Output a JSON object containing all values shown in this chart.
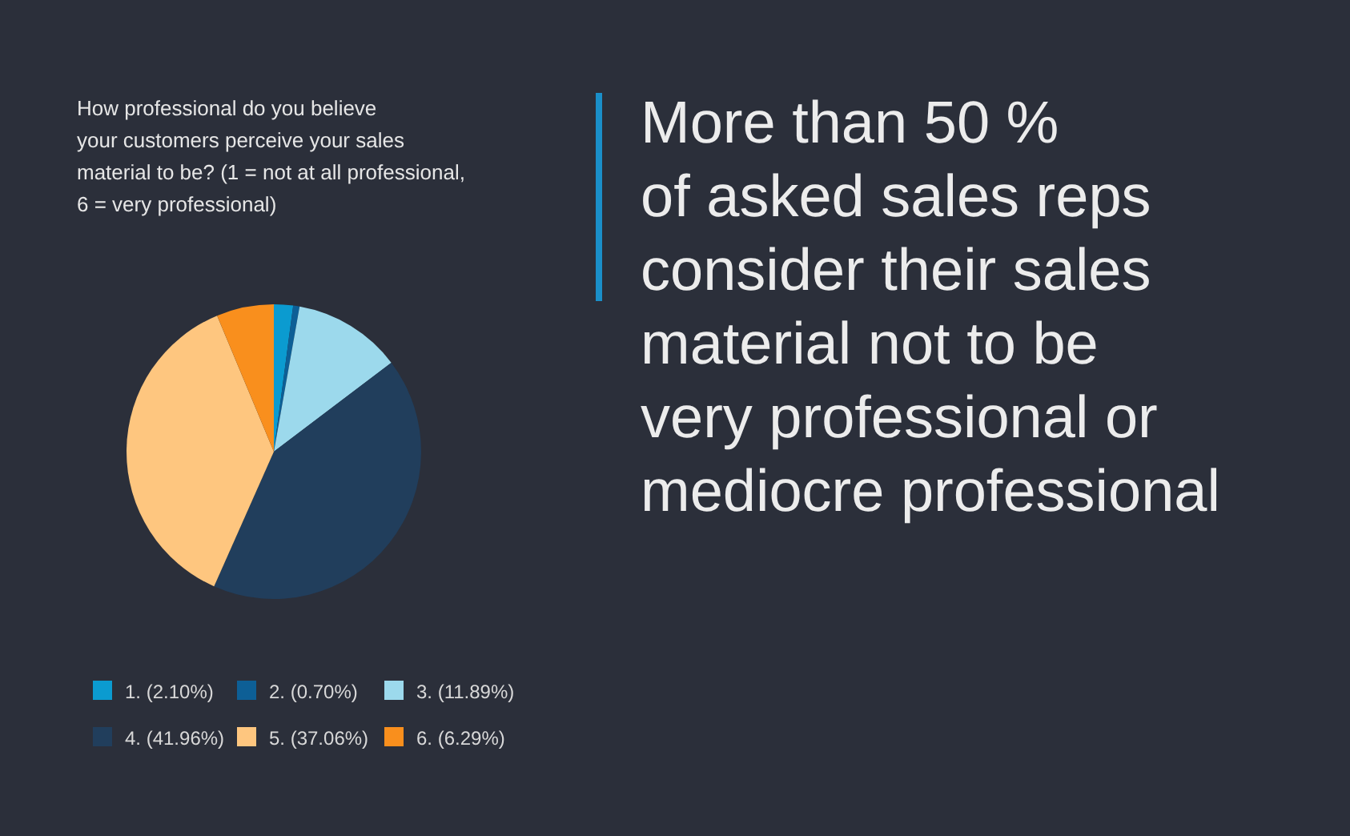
{
  "chart_data": {
    "type": "pie",
    "title": "How professional do you believe\nyour customers perceive your sales\nmaterial to be? (1 = not at all professional,\n6 = very professional)",
    "categories": [
      "1. (2.10%)",
      "2. (0.70%)",
      "3. (11.89%)",
      "4. (41.96%)",
      "5. (37.06%)",
      "6. (6.29%)"
    ],
    "values": [
      2.1,
      0.7,
      11.89,
      41.96,
      37.06,
      6.29
    ],
    "colors": [
      "#0b9bd0",
      "#0d5f96",
      "#9cd9ec",
      "#213e5c",
      "#fec67f",
      "#f98f1d"
    ],
    "legend": "bottom",
    "annotations": [
      "More than 50 %\nof asked sales reps\nconsider their sales\nmaterial not to be\nvery professional or\nmediocre professional"
    ]
  }
}
